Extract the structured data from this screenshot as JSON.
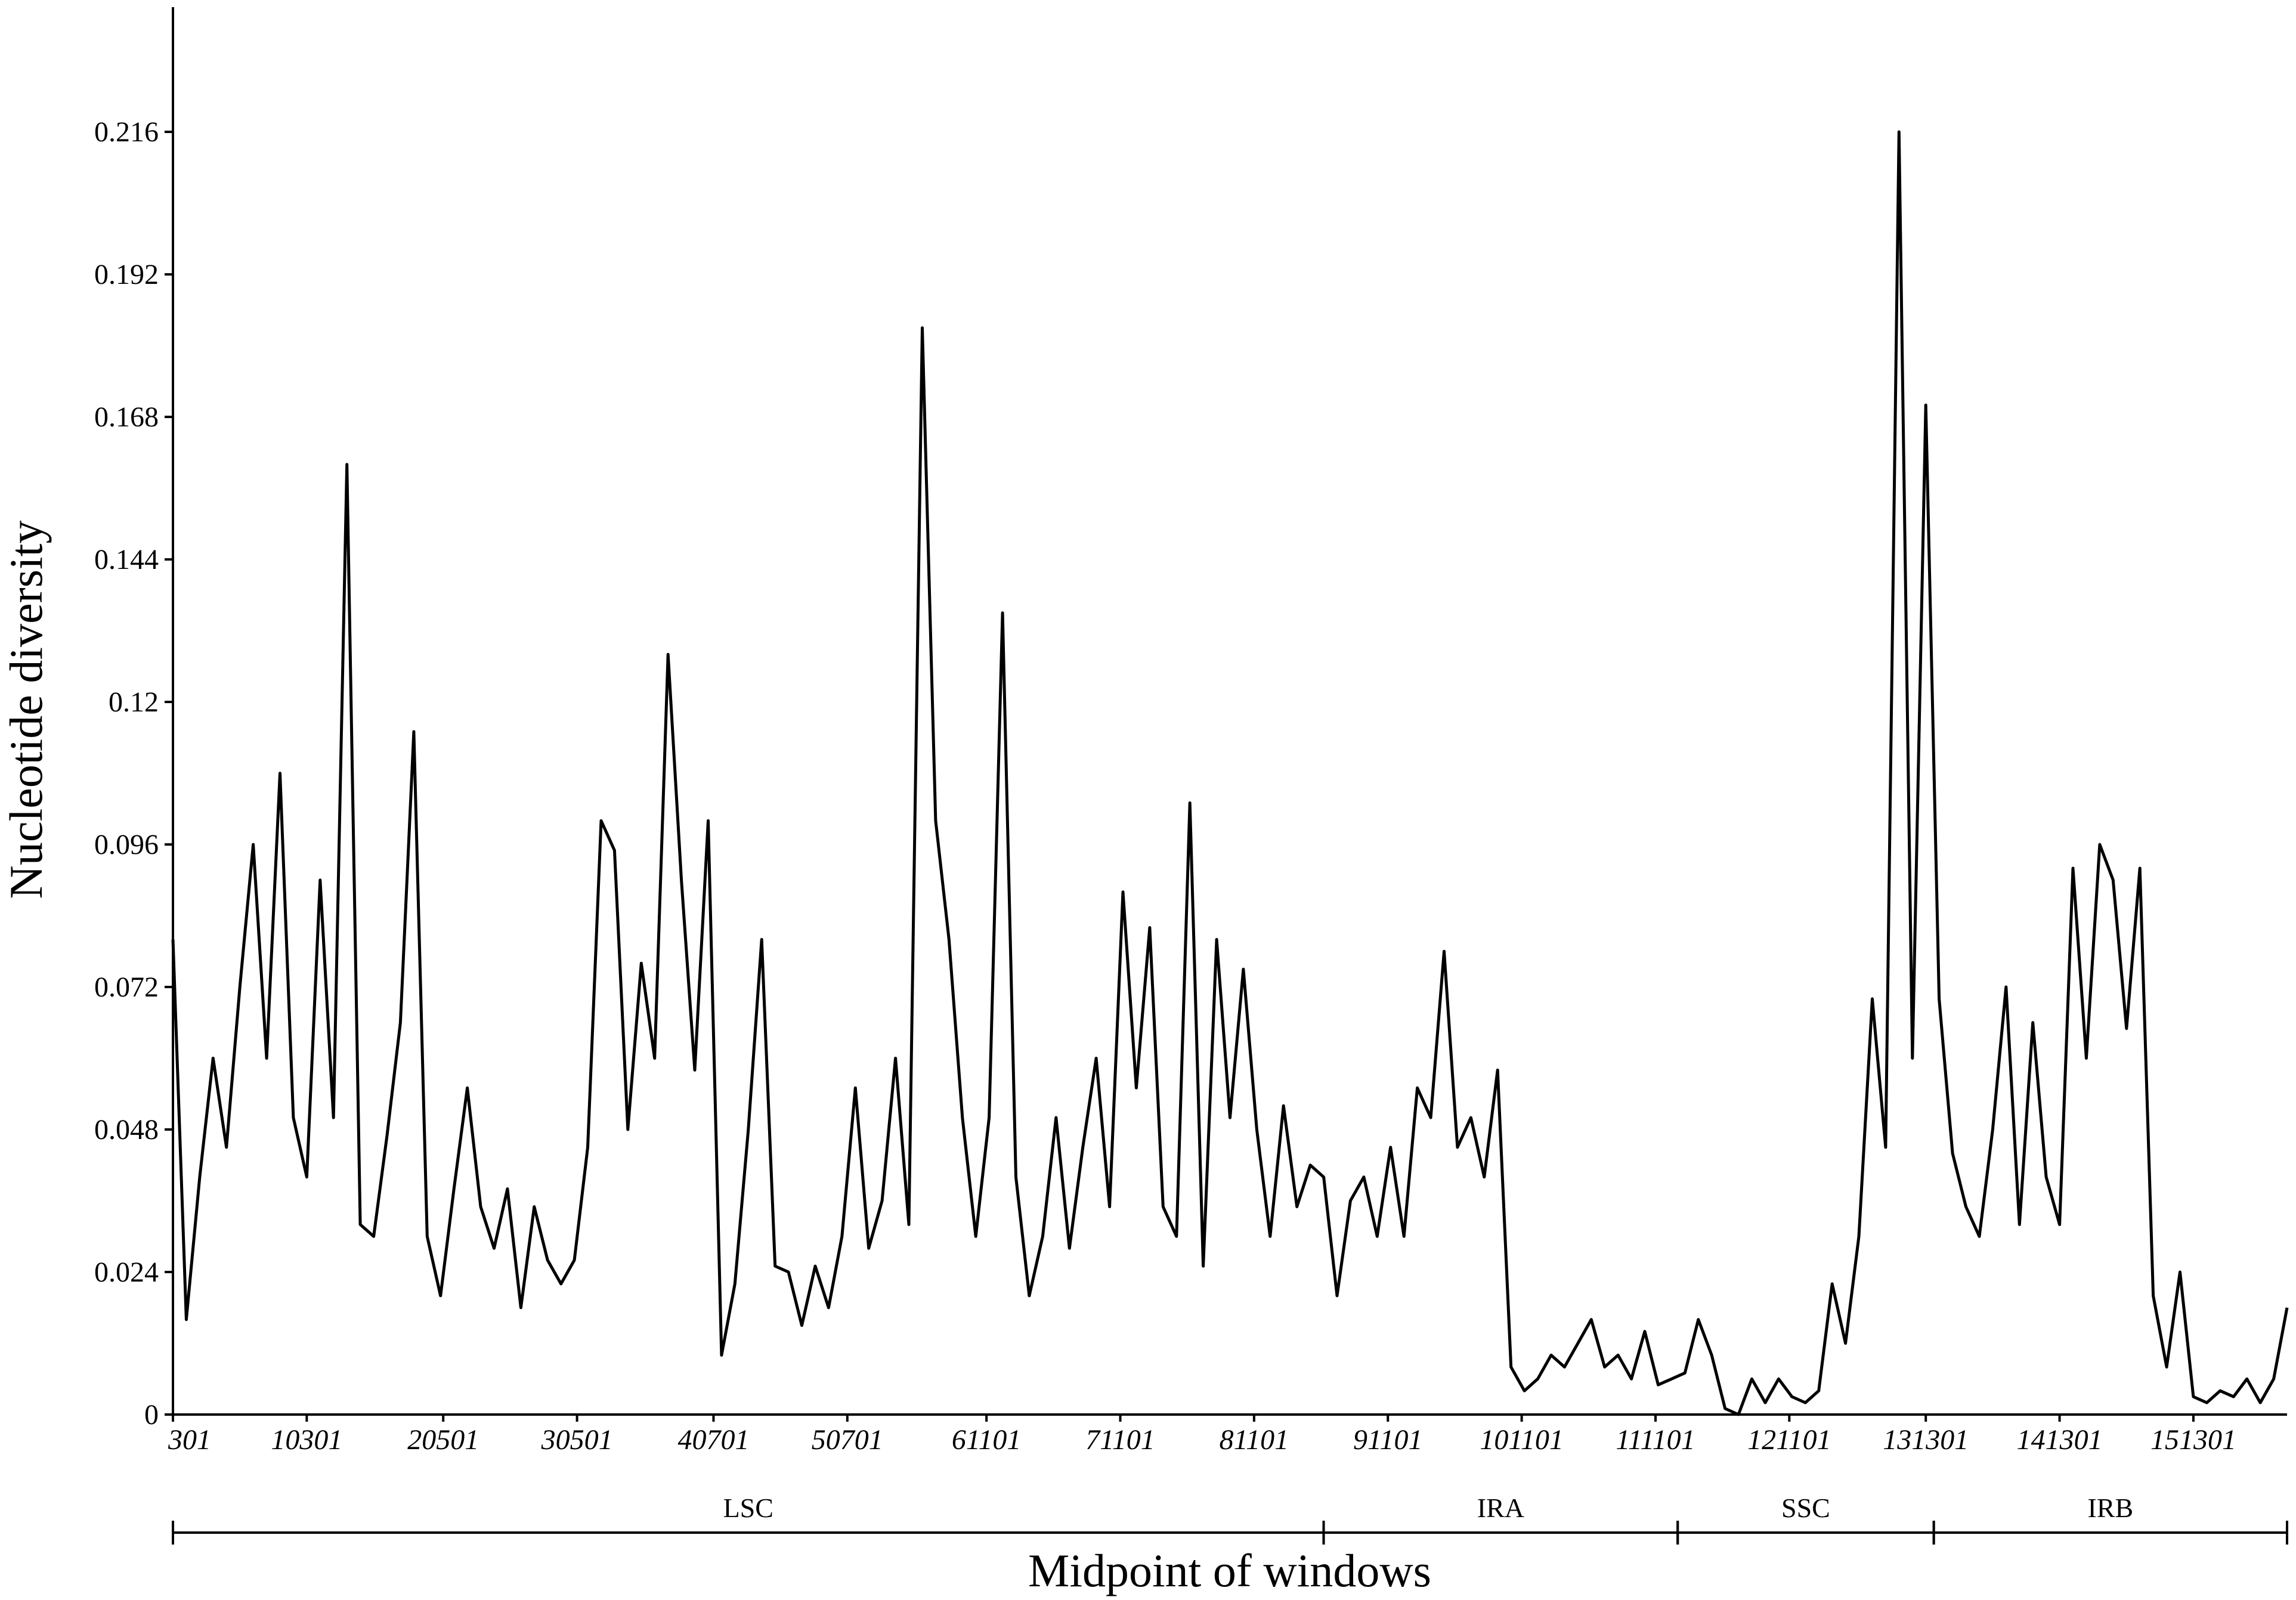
{
  "chart_data": {
    "type": "line",
    "x_label": "Midpoint of windows",
    "y_label": "Nucleotide diversity",
    "color": "#000000",
    "x": [
      301,
      1301,
      2301,
      3301,
      4301,
      5301,
      6301,
      7301,
      8301,
      9301,
      10301,
      11301,
      12301,
      13301,
      14301,
      15301,
      16301,
      17301,
      18301,
      19301,
      20301,
      21301,
      22301,
      23301,
      24301,
      25301,
      26301,
      27301,
      28301,
      29301,
      30301,
      31301,
      32301,
      33301,
      34301,
      35301,
      36301,
      37301,
      38301,
      39301,
      40301,
      41301,
      42301,
      43301,
      44301,
      45301,
      46301,
      47301,
      48301,
      49301,
      50301,
      51301,
      52301,
      53301,
      54301,
      55301,
      56301,
      57301,
      58301,
      59301,
      60301,
      61301,
      62301,
      63301,
      64301,
      65301,
      66301,
      67301,
      68301,
      69301,
      70301,
      71301,
      72301,
      73301,
      74301,
      75301,
      76301,
      77301,
      78301,
      79301,
      80301,
      81301,
      82301,
      83301,
      84301,
      85301,
      86301,
      87301,
      88301,
      89301,
      90301,
      91301,
      92301,
      93301,
      94301,
      95301,
      96301,
      97301,
      98301,
      99301,
      100301,
      101301,
      102301,
      103301,
      104301,
      105301,
      106301,
      107301,
      108301,
      109301,
      110301,
      111301,
      112301,
      113301,
      114301,
      115301,
      116301,
      117301,
      118301,
      119301,
      120301,
      121301,
      122301,
      123301,
      124301,
      125301,
      126301,
      127301,
      128301,
      129301,
      130301,
      131301,
      132301,
      133301,
      134301,
      135301,
      136301,
      137301,
      138301,
      139301,
      140301,
      141301,
      142301,
      143301,
      144301,
      145301,
      146301,
      147301,
      148301,
      149301,
      150301,
      151301,
      152301,
      153301,
      154301,
      155301,
      156301,
      157301,
      158301
    ],
    "values": [
      0.08,
      0.016,
      0.04,
      0.06,
      0.045,
      0.072,
      0.096,
      0.06,
      0.108,
      0.05,
      0.04,
      0.09,
      0.05,
      0.16,
      0.032,
      0.03,
      0.047,
      0.066,
      0.115,
      0.03,
      0.02,
      0.038,
      0.055,
      0.035,
      0.028,
      0.038,
      0.018,
      0.035,
      0.026,
      0.022,
      0.026,
      0.045,
      0.1,
      0.095,
      0.048,
      0.076,
      0.06,
      0.128,
      0.09,
      0.058,
      0.1,
      0.01,
      0.022,
      0.048,
      0.08,
      0.025,
      0.024,
      0.015,
      0.025,
      0.018,
      0.03,
      0.055,
      0.028,
      0.036,
      0.06,
      0.032,
      0.183,
      0.1,
      0.08,
      0.05,
      0.03,
      0.05,
      0.135,
      0.04,
      0.02,
      0.03,
      0.05,
      0.028,
      0.045,
      0.06,
      0.035,
      0.088,
      0.055,
      0.082,
      0.035,
      0.03,
      0.103,
      0.025,
      0.08,
      0.05,
      0.075,
      0.048,
      0.03,
      0.052,
      0.035,
      0.042,
      0.04,
      0.02,
      0.036,
      0.04,
      0.03,
      0.045,
      0.03,
      0.055,
      0.05,
      0.078,
      0.045,
      0.05,
      0.04,
      0.058,
      0.008,
      0.004,
      0.006,
      0.01,
      0.008,
      0.012,
      0.016,
      0.008,
      0.01,
      0.006,
      0.014,
      0.005,
      0.006,
      0.007,
      0.016,
      0.01,
      0.001,
      0.0,
      0.006,
      0.002,
      0.006,
      0.003,
      0.002,
      0.004,
      0.022,
      0.012,
      0.03,
      0.07,
      0.045,
      0.216,
      0.06,
      0.17,
      0.07,
      0.044,
      0.035,
      0.03,
      0.048,
      0.072,
      0.032,
      0.066,
      0.04,
      0.032,
      0.092,
      0.06,
      0.096,
      0.09,
      0.065,
      0.092,
      0.02,
      0.008,
      0.024,
      0.003,
      0.002,
      0.004,
      0.003,
      0.006,
      0.002,
      0.006,
      0.018
    ],
    "xlim": [
      301,
      158301
    ],
    "xticks": [
      301,
      10301,
      20501,
      30501,
      40701,
      50701,
      61101,
      71101,
      81101,
      91101,
      101101,
      111101,
      121101,
      131301,
      141301,
      151301
    ],
    "ylim": [
      0,
      0.237
    ],
    "yticks": [
      0,
      0.024,
      0.048,
      0.072,
      0.096,
      0.12,
      0.144,
      0.168,
      0.192,
      0.216
    ],
    "regions": [
      {
        "name": "LSC",
        "start": 301,
        "end": 86300
      },
      {
        "name": "IRA",
        "start": 86300,
        "end": 112760
      },
      {
        "name": "SSC",
        "start": 112760,
        "end": 131900
      },
      {
        "name": "IRB",
        "start": 131900,
        "end": 158301
      }
    ]
  }
}
